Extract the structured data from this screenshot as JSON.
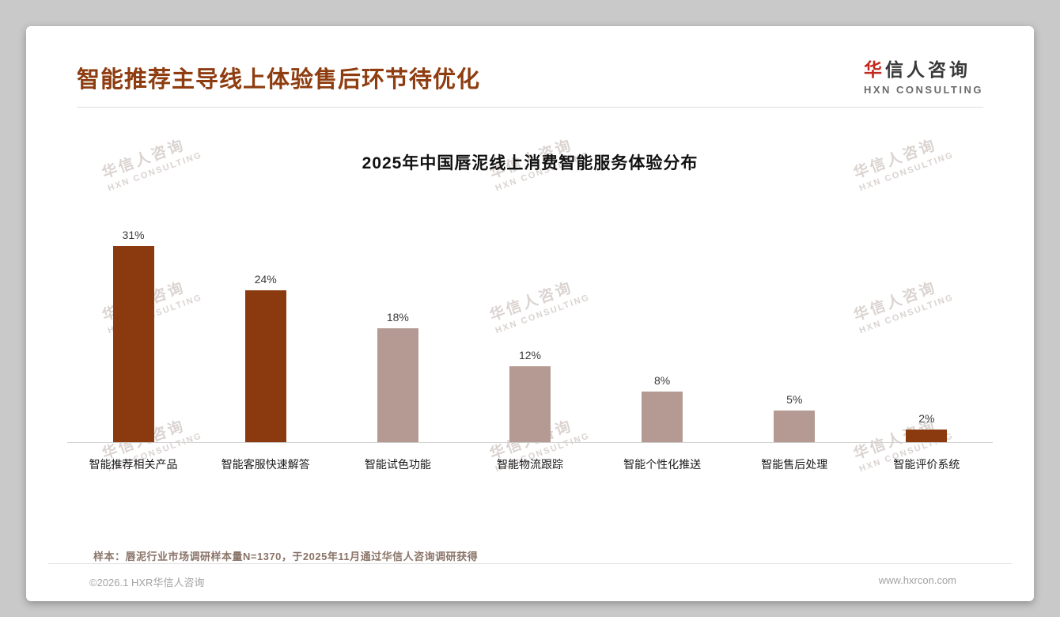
{
  "header": {
    "title": "智能推荐主导线上体验售后环节待优化",
    "logo": {
      "cn_accent": "华",
      "cn_rest": "信人咨询",
      "en": "HXN CONSULTING"
    }
  },
  "colors": {
    "title_brown": "#8E3D10",
    "bar_dark": "#8A3A0E",
    "bar_light": "#B49A93",
    "logo_accent": "#C4281C"
  },
  "chart_data": {
    "type": "bar",
    "title": "2025年中国唇泥线上消费智能服务体验分布",
    "categories": [
      "智能推荐相关产品",
      "智能客服快速解答",
      "智能试色功能",
      "智能物流跟踪",
      "智能个性化推送",
      "智能售后处理",
      "智能评价系统"
    ],
    "values": [
      31,
      24,
      18,
      12,
      8,
      5,
      2
    ],
    "value_labels": [
      "31%",
      "24%",
      "18%",
      "12%",
      "8%",
      "5%",
      "2%"
    ],
    "bar_colors": [
      "#8A3A0E",
      "#8A3A0E",
      "#B49A93",
      "#B49A93",
      "#B49A93",
      "#B49A93",
      "#8A3A0E"
    ],
    "xlabel": "",
    "ylabel": "",
    "ylim": [
      0,
      35
    ],
    "grid": false,
    "legend": false
  },
  "watermark": {
    "cn": "华信人咨询",
    "en": "HXN CONSULTING"
  },
  "footnote": "样本：唇泥行业市场调研样本量N=1370，于2025年11月通过华信人咨询调研获得",
  "footer": {
    "copyright": "©2026.1 HXR华信人咨询",
    "website": "www.hxrcon.com"
  }
}
